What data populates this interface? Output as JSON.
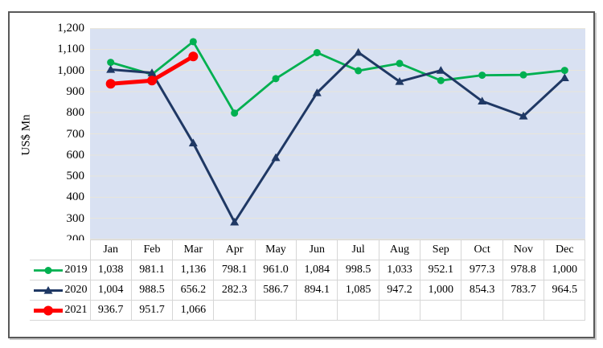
{
  "chart_data": {
    "type": "line",
    "title": "",
    "xlabel": "",
    "ylabel": "US$ Mn",
    "ylim": [
      200,
      1200
    ],
    "grid": "horizontal",
    "legend_position": "data-table-left",
    "categories": [
      "Jan",
      "Feb",
      "Mar",
      "Apr",
      "May",
      "Jun",
      "Jul",
      "Aug",
      "Sep",
      "Oct",
      "Nov",
      "Dec"
    ],
    "yticks": [
      {
        "value": 1200,
        "label": "1,200"
      },
      {
        "value": 1100,
        "label": "1,100"
      },
      {
        "value": 1000,
        "label": "1,000"
      },
      {
        "value": 900,
        "label": "900"
      },
      {
        "value": 800,
        "label": "800"
      },
      {
        "value": 700,
        "label": "700"
      },
      {
        "value": 600,
        "label": "600"
      },
      {
        "value": 500,
        "label": "500"
      },
      {
        "value": 400,
        "label": "400"
      },
      {
        "value": 300,
        "label": "300"
      },
      {
        "value": 200,
        "label": "200"
      }
    ],
    "series": [
      {
        "name": "2019",
        "color": "#00B050",
        "marker": "circle",
        "line_width": 2.8,
        "marker_size": 4.5,
        "values": [
          1038,
          981.1,
          1136,
          798.1,
          961.0,
          1084,
          998.5,
          1033,
          952.1,
          977.3,
          978.8,
          1000
        ],
        "display": [
          "1,038",
          "981.1",
          "1,136",
          "798.1",
          "961.0",
          "1,084",
          "998.5",
          "1,033",
          "952.1",
          "977.3",
          "978.8",
          "1,000"
        ]
      },
      {
        "name": "2020",
        "color": "#1F3864",
        "marker": "triangle",
        "line_width": 3,
        "marker_size": 5.5,
        "values": [
          1004,
          988.5,
          656.2,
          282.3,
          586.7,
          894.1,
          1085,
          947.2,
          1000,
          854.3,
          783.7,
          964.5
        ],
        "display": [
          "1,004",
          "988.5",
          "656.2",
          "282.3",
          "586.7",
          "894.1",
          "1,085",
          "947.2",
          "1,000",
          "854.3",
          "783.7",
          "964.5"
        ]
      },
      {
        "name": "2021",
        "color": "#FF0000",
        "marker": "circle",
        "line_width": 5,
        "marker_size": 6,
        "values": [
          936.7,
          951.7,
          1066,
          null,
          null,
          null,
          null,
          null,
          null,
          null,
          null,
          null
        ],
        "display": [
          "936.7",
          "951.7",
          "1,066",
          "",
          "",
          "",
          "",
          "",
          "",
          "",
          "",
          ""
        ]
      }
    ]
  },
  "colors": {
    "plot_bg": "#D9E1F2",
    "gridline": "#E8E5DB",
    "table_border": "#D6D6D6",
    "frame_border": "#595959",
    "text": "#000000"
  }
}
